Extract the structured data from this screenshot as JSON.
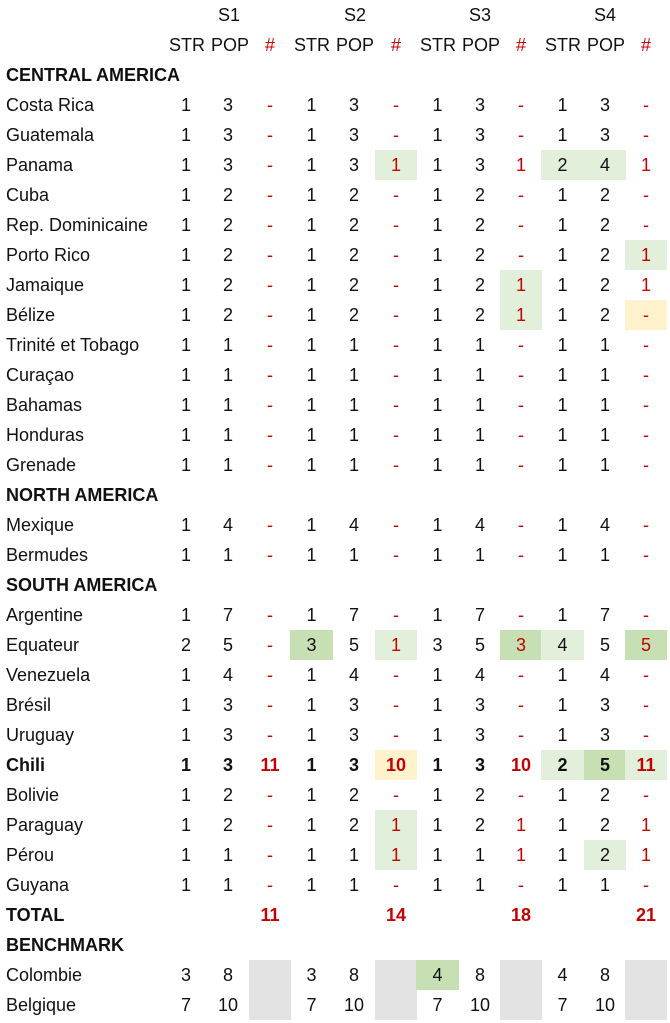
{
  "header": {
    "scenarios": [
      "S1",
      "S2",
      "S3",
      "S4"
    ],
    "str": "STR",
    "pop": "POP",
    "hash": "#"
  },
  "colors": {
    "hash_text": "#c00000",
    "light_green": "#e2efda",
    "medium_green": "#c6e0b4",
    "light_yellow": "#fff2cc",
    "grey": "#e3e3e3"
  },
  "rows": [
    {
      "type": "section",
      "label": "CENTRAL AMERICA"
    },
    {
      "type": "data",
      "label": "Costa Rica",
      "values": [
        "1",
        "3",
        "-",
        "1",
        "3",
        "-",
        "1",
        "3",
        "-",
        "1",
        "3",
        "-"
      ]
    },
    {
      "type": "data",
      "label": "Guatemala",
      "values": [
        "1",
        "3",
        "-",
        "1",
        "3",
        "-",
        "1",
        "3",
        "-",
        "1",
        "3",
        "-"
      ]
    },
    {
      "type": "data",
      "label": "Panama",
      "values": [
        "1",
        "3",
        "-",
        "1",
        "3",
        "1",
        "1",
        "3",
        "1",
        "2",
        "4",
        "1"
      ],
      "bg": {
        "5": "lg",
        "9": "lg",
        "10": "lg"
      }
    },
    {
      "type": "data",
      "label": "Cuba",
      "values": [
        "1",
        "2",
        "-",
        "1",
        "2",
        "-",
        "1",
        "2",
        "-",
        "1",
        "2",
        "-"
      ]
    },
    {
      "type": "data",
      "label": "Rep. Dominicaine",
      "values": [
        "1",
        "2",
        "-",
        "1",
        "2",
        "-",
        "1",
        "2",
        "-",
        "1",
        "2",
        "-"
      ]
    },
    {
      "type": "data",
      "label": "Porto Rico",
      "values": [
        "1",
        "2",
        "-",
        "1",
        "2",
        "-",
        "1",
        "2",
        "-",
        "1",
        "2",
        "1"
      ],
      "bg": {
        "11": "lg"
      }
    },
    {
      "type": "data",
      "label": "Jamaique",
      "values": [
        "1",
        "2",
        "-",
        "1",
        "2",
        "-",
        "1",
        "2",
        "1",
        "1",
        "2",
        "1"
      ],
      "bg": {
        "8": "lg"
      }
    },
    {
      "type": "data",
      "label": "Bélize",
      "values": [
        "1",
        "2",
        "-",
        "1",
        "2",
        "-",
        "1",
        "2",
        "1",
        "1",
        "2",
        "-"
      ],
      "bg": {
        "8": "lg",
        "11": "ly"
      }
    },
    {
      "type": "data",
      "label": "Trinité et Tobago",
      "values": [
        "1",
        "1",
        "-",
        "1",
        "1",
        "-",
        "1",
        "1",
        "-",
        "1",
        "1",
        "-"
      ]
    },
    {
      "type": "data",
      "label": "Curaçao",
      "values": [
        "1",
        "1",
        "-",
        "1",
        "1",
        "-",
        "1",
        "1",
        "-",
        "1",
        "1",
        "-"
      ]
    },
    {
      "type": "data",
      "label": "Bahamas",
      "values": [
        "1",
        "1",
        "-",
        "1",
        "1",
        "-",
        "1",
        "1",
        "-",
        "1",
        "1",
        "-"
      ]
    },
    {
      "type": "data",
      "label": "Honduras",
      "values": [
        "1",
        "1",
        "-",
        "1",
        "1",
        "-",
        "1",
        "1",
        "-",
        "1",
        "1",
        "-"
      ]
    },
    {
      "type": "data",
      "label": "Grenade",
      "values": [
        "1",
        "1",
        "-",
        "1",
        "1",
        "-",
        "1",
        "1",
        "-",
        "1",
        "1",
        "-"
      ]
    },
    {
      "type": "section",
      "label": "NORTH AMERICA"
    },
    {
      "type": "data",
      "label": "Mexique",
      "values": [
        "1",
        "4",
        "-",
        "1",
        "4",
        "-",
        "1",
        "4",
        "-",
        "1",
        "4",
        "-"
      ]
    },
    {
      "type": "data",
      "label": "Bermudes",
      "values": [
        "1",
        "1",
        "-",
        "1",
        "1",
        "-",
        "1",
        "1",
        "-",
        "1",
        "1",
        "-"
      ]
    },
    {
      "type": "section",
      "label": "SOUTH AMERICA"
    },
    {
      "type": "data",
      "label": "Argentine",
      "values": [
        "1",
        "7",
        "-",
        "1",
        "7",
        "-",
        "1",
        "7",
        "-",
        "1",
        "7",
        "-"
      ]
    },
    {
      "type": "data",
      "label": "Equateur",
      "values": [
        "2",
        "5",
        "-",
        "3",
        "5",
        "1",
        "3",
        "5",
        "3",
        "4",
        "5",
        "5"
      ],
      "bg": {
        "3": "mg",
        "5": "lg",
        "8": "mg",
        "9": "lg",
        "11": "mg"
      }
    },
    {
      "type": "data",
      "label": "Venezuela",
      "values": [
        "1",
        "4",
        "-",
        "1",
        "4",
        "-",
        "1",
        "4",
        "-",
        "1",
        "4",
        "-"
      ]
    },
    {
      "type": "data",
      "label": "Brésil",
      "values": [
        "1",
        "3",
        "-",
        "1",
        "3",
        "-",
        "1",
        "3",
        "-",
        "1",
        "3",
        "-"
      ]
    },
    {
      "type": "data",
      "label": "Uruguay",
      "values": [
        "1",
        "3",
        "-",
        "1",
        "3",
        "-",
        "1",
        "3",
        "-",
        "1",
        "3",
        "-"
      ]
    },
    {
      "type": "data",
      "label": "Chili",
      "bold": true,
      "values": [
        "1",
        "3",
        "11",
        "1",
        "3",
        "10",
        "1",
        "3",
        "10",
        "2",
        "5",
        "11"
      ],
      "bg": {
        "5": "ly",
        "9": "lg",
        "10": "mg",
        "11": "lg"
      }
    },
    {
      "type": "data",
      "label": "Bolivie",
      "values": [
        "1",
        "2",
        "-",
        "1",
        "2",
        "-",
        "1",
        "2",
        "-",
        "1",
        "2",
        "-"
      ]
    },
    {
      "type": "data",
      "label": "Paraguay",
      "values": [
        "1",
        "2",
        "-",
        "1",
        "2",
        "1",
        "1",
        "2",
        "1",
        "1",
        "2",
        "1"
      ],
      "bg": {
        "5": "lg"
      }
    },
    {
      "type": "data",
      "label": "Pérou",
      "values": [
        "1",
        "1",
        "-",
        "1",
        "1",
        "1",
        "1",
        "1",
        "1",
        "1",
        "2",
        "1"
      ],
      "bg": {
        "5": "lg",
        "10": "lg"
      }
    },
    {
      "type": "data",
      "label": "Guyana",
      "values": [
        "1",
        "1",
        "-",
        "1",
        "1",
        "-",
        "1",
        "1",
        "-",
        "1",
        "1",
        "-"
      ]
    },
    {
      "type": "total",
      "label": "TOTAL",
      "values": [
        "",
        "",
        "11",
        "",
        "",
        "14",
        "",
        "",
        "18",
        "",
        "",
        "21"
      ]
    },
    {
      "type": "section",
      "label": "BENCHMARK"
    },
    {
      "type": "data",
      "label": "Colombie",
      "values": [
        "3",
        "8",
        "",
        "3",
        "8",
        "",
        "4",
        "8",
        "",
        "4",
        "8",
        ""
      ],
      "bg": {
        "2": "gr",
        "5": "gr",
        "6": "mg",
        "8": "gr",
        "11": "gr"
      }
    },
    {
      "type": "data",
      "label": "Belgique",
      "values": [
        "7",
        "10",
        "",
        "7",
        "10",
        "",
        "7",
        "10",
        "",
        "7",
        "10",
        ""
      ],
      "bg": {
        "2": "gr",
        "5": "gr",
        "8": "gr",
        "11": "gr"
      }
    }
  ]
}
